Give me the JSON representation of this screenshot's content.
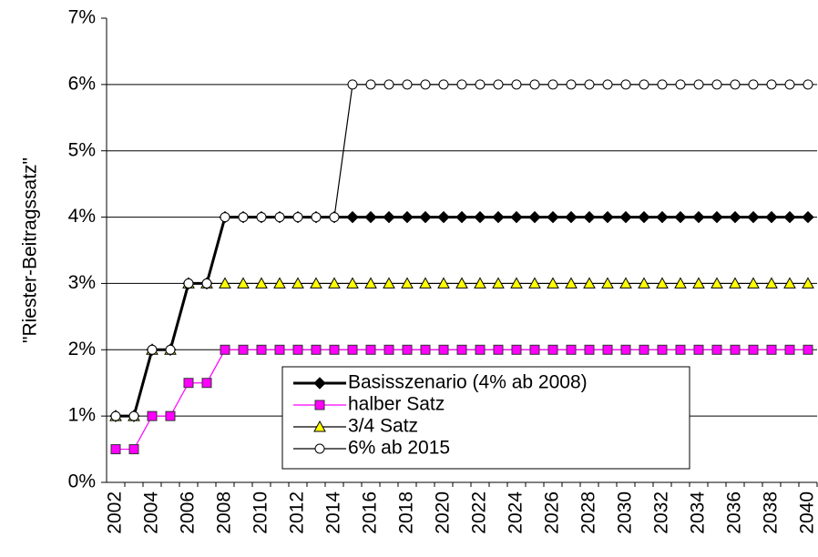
{
  "chart_data": {
    "type": "line",
    "y_label": "\"Riester-Beitragssatz\"",
    "categories": [
      "2002",
      null,
      "2004",
      null,
      "2006",
      null,
      "2008",
      null,
      "2010",
      null,
      "2012",
      null,
      "2014",
      null,
      "2016",
      null,
      "2018",
      null,
      "2020",
      null,
      "2022",
      null,
      "2024",
      null,
      "2026",
      null,
      "2028",
      null,
      "2030",
      null,
      "2032",
      null,
      "2034",
      null,
      "2036",
      null,
      "2038",
      null,
      "2040"
    ],
    "series": [
      {
        "name": "Basisszenario (4% ab 2008)",
        "color": "#000000",
        "marker": "diamond",
        "width": 3,
        "values": [
          1,
          1,
          2,
          2,
          3,
          3,
          4,
          4,
          4,
          4,
          4,
          4,
          4,
          4,
          4,
          4,
          4,
          4,
          4,
          4,
          4,
          4,
          4,
          4,
          4,
          4,
          4,
          4,
          4,
          4,
          4,
          4,
          4,
          4,
          4,
          4,
          4,
          4,
          4
        ]
      },
      {
        "name": "halber Satz",
        "color": "#ff00ff",
        "marker": "square",
        "width": 1.2,
        "values": [
          0.5,
          0.5,
          1,
          1,
          1.5,
          1.5,
          2,
          2,
          2,
          2,
          2,
          2,
          2,
          2,
          2,
          2,
          2,
          2,
          2,
          2,
          2,
          2,
          2,
          2,
          2,
          2,
          2,
          2,
          2,
          2,
          2,
          2,
          2,
          2,
          2,
          2,
          2,
          2,
          2
        ]
      },
      {
        "name": "3/4 Satz",
        "color": "#000000",
        "marker": "triangle",
        "marker_fill": "#ffff00",
        "width": 1.2,
        "values": [
          1,
          1,
          2,
          2,
          3,
          3,
          3,
          3,
          3,
          3,
          3,
          3,
          3,
          3,
          3,
          3,
          3,
          3,
          3,
          3,
          3,
          3,
          3,
          3,
          3,
          3,
          3,
          3,
          3,
          3,
          3,
          3,
          3,
          3,
          3,
          3,
          3,
          3,
          3
        ]
      },
      {
        "name": "6% ab 2015",
        "color": "#000000",
        "marker": "circle",
        "marker_fill": "#ffffff",
        "width": 1.2,
        "values": [
          1,
          1,
          2,
          2,
          3,
          3,
          4,
          4,
          4,
          4,
          4,
          4,
          4,
          6,
          6,
          6,
          6,
          6,
          6,
          6,
          6,
          6,
          6,
          6,
          6,
          6,
          6,
          6,
          6,
          6,
          6,
          6,
          6,
          6,
          6,
          6,
          6,
          6,
          6
        ]
      }
    ],
    "ylim": [
      0,
      7
    ],
    "yticks": [
      {
        "value": 0,
        "label": "0%"
      },
      {
        "value": 1,
        "label": "1%"
      },
      {
        "value": 2,
        "label": "2%"
      },
      {
        "value": 3,
        "label": "3%"
      },
      {
        "value": 4,
        "label": "4%"
      },
      {
        "value": 5,
        "label": "5%"
      },
      {
        "value": 6,
        "label": "6%"
      },
      {
        "value": 7,
        "label": "7%"
      }
    ],
    "grid": true
  }
}
